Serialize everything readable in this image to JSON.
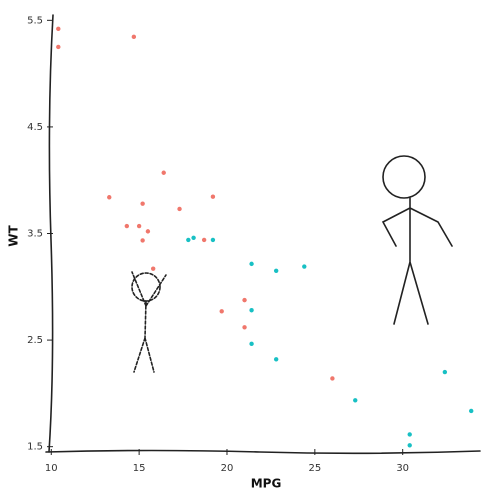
{
  "chart_data": {
    "type": "scatter",
    "x_label": "MPG",
    "y_label": "WT",
    "xlim": [
      9.7,
      34.4
    ],
    "ylim": [
      1.45,
      5.55
    ],
    "xticks": [
      10,
      15,
      20,
      25,
      30
    ],
    "yticks": [
      1.5,
      2.5,
      3.5,
      4.5,
      5.5
    ],
    "series": [
      {
        "color": "#f0776c",
        "x": [
          10.4,
          10.4,
          14.7,
          16.4,
          13.3,
          15.2,
          19.2,
          17.3,
          14.3,
          15.0,
          15.5,
          15.2,
          18.7,
          15.8,
          21.0,
          21.0,
          19.7,
          26.0
        ],
        "values": [
          5.42,
          5.25,
          5.345,
          4.07,
          3.84,
          3.78,
          3.845,
          3.73,
          3.57,
          3.57,
          3.52,
          3.435,
          3.44,
          3.17,
          2.875,
          2.62,
          2.77,
          2.14
        ]
      },
      {
        "color": "#18c0c4",
        "x": [
          17.8,
          18.1,
          19.2,
          21.4,
          22.8,
          24.4,
          21.4,
          21.4,
          22.8,
          27.3,
          32.4,
          33.9,
          30.4,
          30.4
        ],
        "values": [
          3.44,
          3.46,
          3.44,
          3.215,
          3.15,
          3.19,
          2.78,
          2.465,
          2.32,
          1.935,
          2.2,
          1.835,
          1.615,
          1.513
        ]
      }
    ]
  }
}
